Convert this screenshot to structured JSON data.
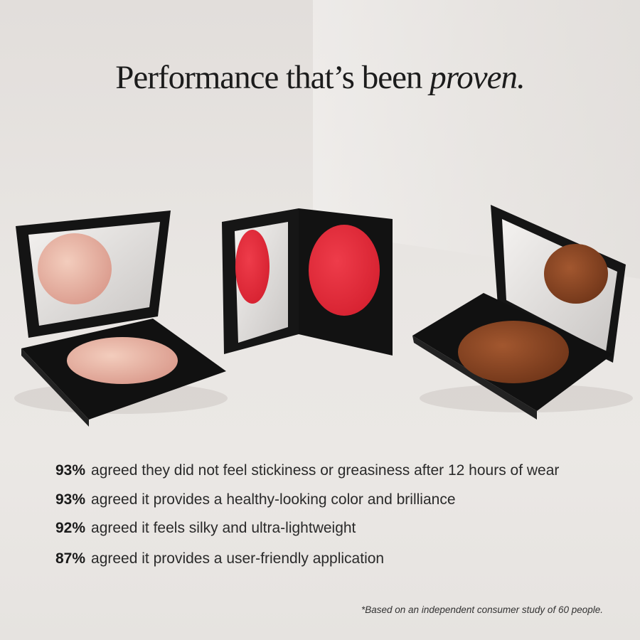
{
  "headline": {
    "main": "Performance that’s been",
    "emphasis": "proven."
  },
  "products": [
    {
      "shade": "peach highlighter",
      "color": "#e8b5a4"
    },
    {
      "shade": "red",
      "color": "#e5303f"
    },
    {
      "shade": "bronze",
      "color": "#8a4424"
    }
  ],
  "stats": [
    {
      "percent": "93%",
      "text": "agreed they did not feel stickiness or greasiness after 12 hours of wear"
    },
    {
      "percent": "93%",
      "text": "agreed it provides a healthy-looking color and brilliance"
    },
    {
      "percent": "92%",
      "text": "agreed it feels silky and ultra-lightweight"
    },
    {
      "percent": "87%",
      "text": "agreed it provides a user-friendly application"
    }
  ],
  "footnote": "*Based on an independent consumer study of 60 people."
}
